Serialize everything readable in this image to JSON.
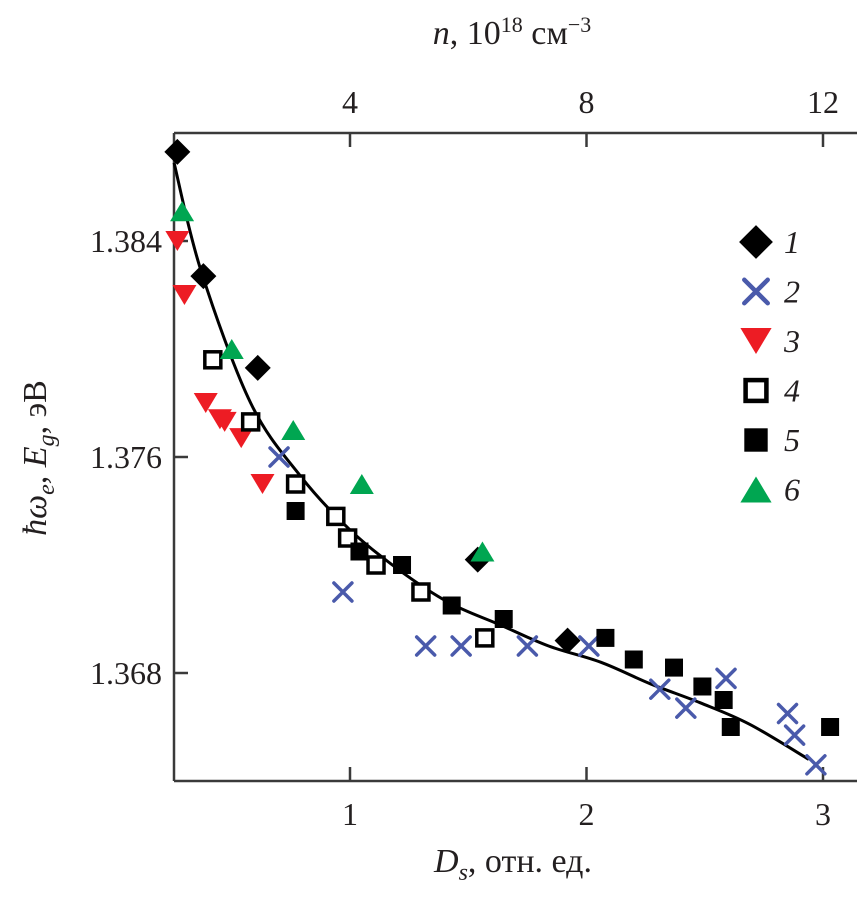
{
  "chart_data": {
    "type": "scatter",
    "title": "",
    "xlabel": "D_s, отн. ед.",
    "xlabel_parts": {
      "main": "D",
      "sub": "s",
      "rest": ", отн. ед."
    },
    "ylabel": "ħω_e, E_g, эВ",
    "ylabel_parts": {
      "a": "ħω",
      "a_sub": "e",
      "b": ", E",
      "b_sub": "g",
      "c": ", эВ"
    },
    "top_xlabel": "n, 10^18 см^-3",
    "top_xlabel_parts": {
      "a": "n",
      "b": ", 10",
      "sup1": "18",
      "c": " см",
      "sup2": "−3"
    },
    "xlim": [
      0.256,
      3.3
    ],
    "ylim": [
      1.364,
      1.388
    ],
    "x_ticks": [
      1,
      2,
      3
    ],
    "x_tick_labels": [
      "1",
      "2",
      "3"
    ],
    "y_ticks": [
      1.368,
      1.376,
      1.384
    ],
    "y_tick_labels": [
      "1.368",
      "1.376",
      "1.384"
    ],
    "top_x_ticks": [
      4,
      8,
      12
    ],
    "top_x_tick_labels": [
      "4",
      "8",
      "12"
    ],
    "top_x_relation": "n = 4 * D_s",
    "grid": false,
    "legend_position": "top-right",
    "series": [
      {
        "name": "1",
        "marker": "diamond",
        "color": "#000000",
        "x": [
          0.27,
          0.38,
          0.61,
          1.54,
          1.92
        ],
        "y": [
          1.3873,
          1.3827,
          1.3793,
          1.3722,
          1.3692
        ]
      },
      {
        "name": "2",
        "marker": "x",
        "color": "#4a5aab",
        "x": [
          0.7,
          0.97,
          1.32,
          1.47,
          1.75,
          2.01,
          2.31,
          2.42,
          2.59,
          2.85,
          2.88,
          2.97
        ],
        "y": [
          1.376,
          1.371,
          1.369,
          1.369,
          1.369,
          1.369,
          1.3674,
          1.3667,
          1.3678,
          1.3665,
          1.3657,
          1.3646
        ]
      },
      {
        "name": "3",
        "marker": "triangle-down",
        "color": "#ed1c24",
        "x": [
          0.27,
          0.3,
          0.39,
          0.45,
          0.47,
          0.54,
          0.63
        ],
        "y": [
          1.384,
          1.382,
          1.378,
          1.3774,
          1.3773,
          1.3767,
          1.375
        ]
      },
      {
        "name": "4",
        "marker": "open-square",
        "color": "#000000",
        "x": [
          0.42,
          0.58,
          0.77,
          0.94,
          0.99,
          1.11,
          1.3,
          1.57
        ],
        "y": [
          1.3796,
          1.3773,
          1.375,
          1.3738,
          1.373,
          1.372,
          1.371,
          1.3693
        ]
      },
      {
        "name": "5",
        "marker": "filled-square",
        "color": "#000000",
        "x": [
          0.77,
          1.04,
          1.22,
          1.43,
          1.65,
          2.08,
          2.2,
          2.37,
          2.49,
          2.58,
          2.61,
          3.03
        ],
        "y": [
          1.374,
          1.3725,
          1.372,
          1.3705,
          1.37,
          1.3693,
          1.3685,
          1.3682,
          1.3675,
          1.367,
          1.366,
          1.366
        ]
      },
      {
        "name": "6",
        "marker": "triangle-up",
        "color": "#00a651",
        "x": [
          0.29,
          0.5,
          0.76,
          1.05,
          1.56
        ],
        "y": [
          1.3851,
          1.38,
          1.377,
          1.375,
          1.3725
        ]
      }
    ],
    "fit_curve": {
      "name": "fit",
      "color": "#000000",
      "x": [
        0.256,
        0.37,
        0.58,
        0.79,
        1.0,
        1.21,
        1.42,
        1.63,
        1.84,
        2.06,
        2.27,
        2.48,
        2.69,
        2.94
      ],
      "y": [
        1.3869,
        1.3829,
        1.378,
        1.3753,
        1.3733,
        1.3718,
        1.3706,
        1.3698,
        1.369,
        1.3684,
        1.3676,
        1.3669,
        1.3661,
        1.3648
      ]
    }
  }
}
